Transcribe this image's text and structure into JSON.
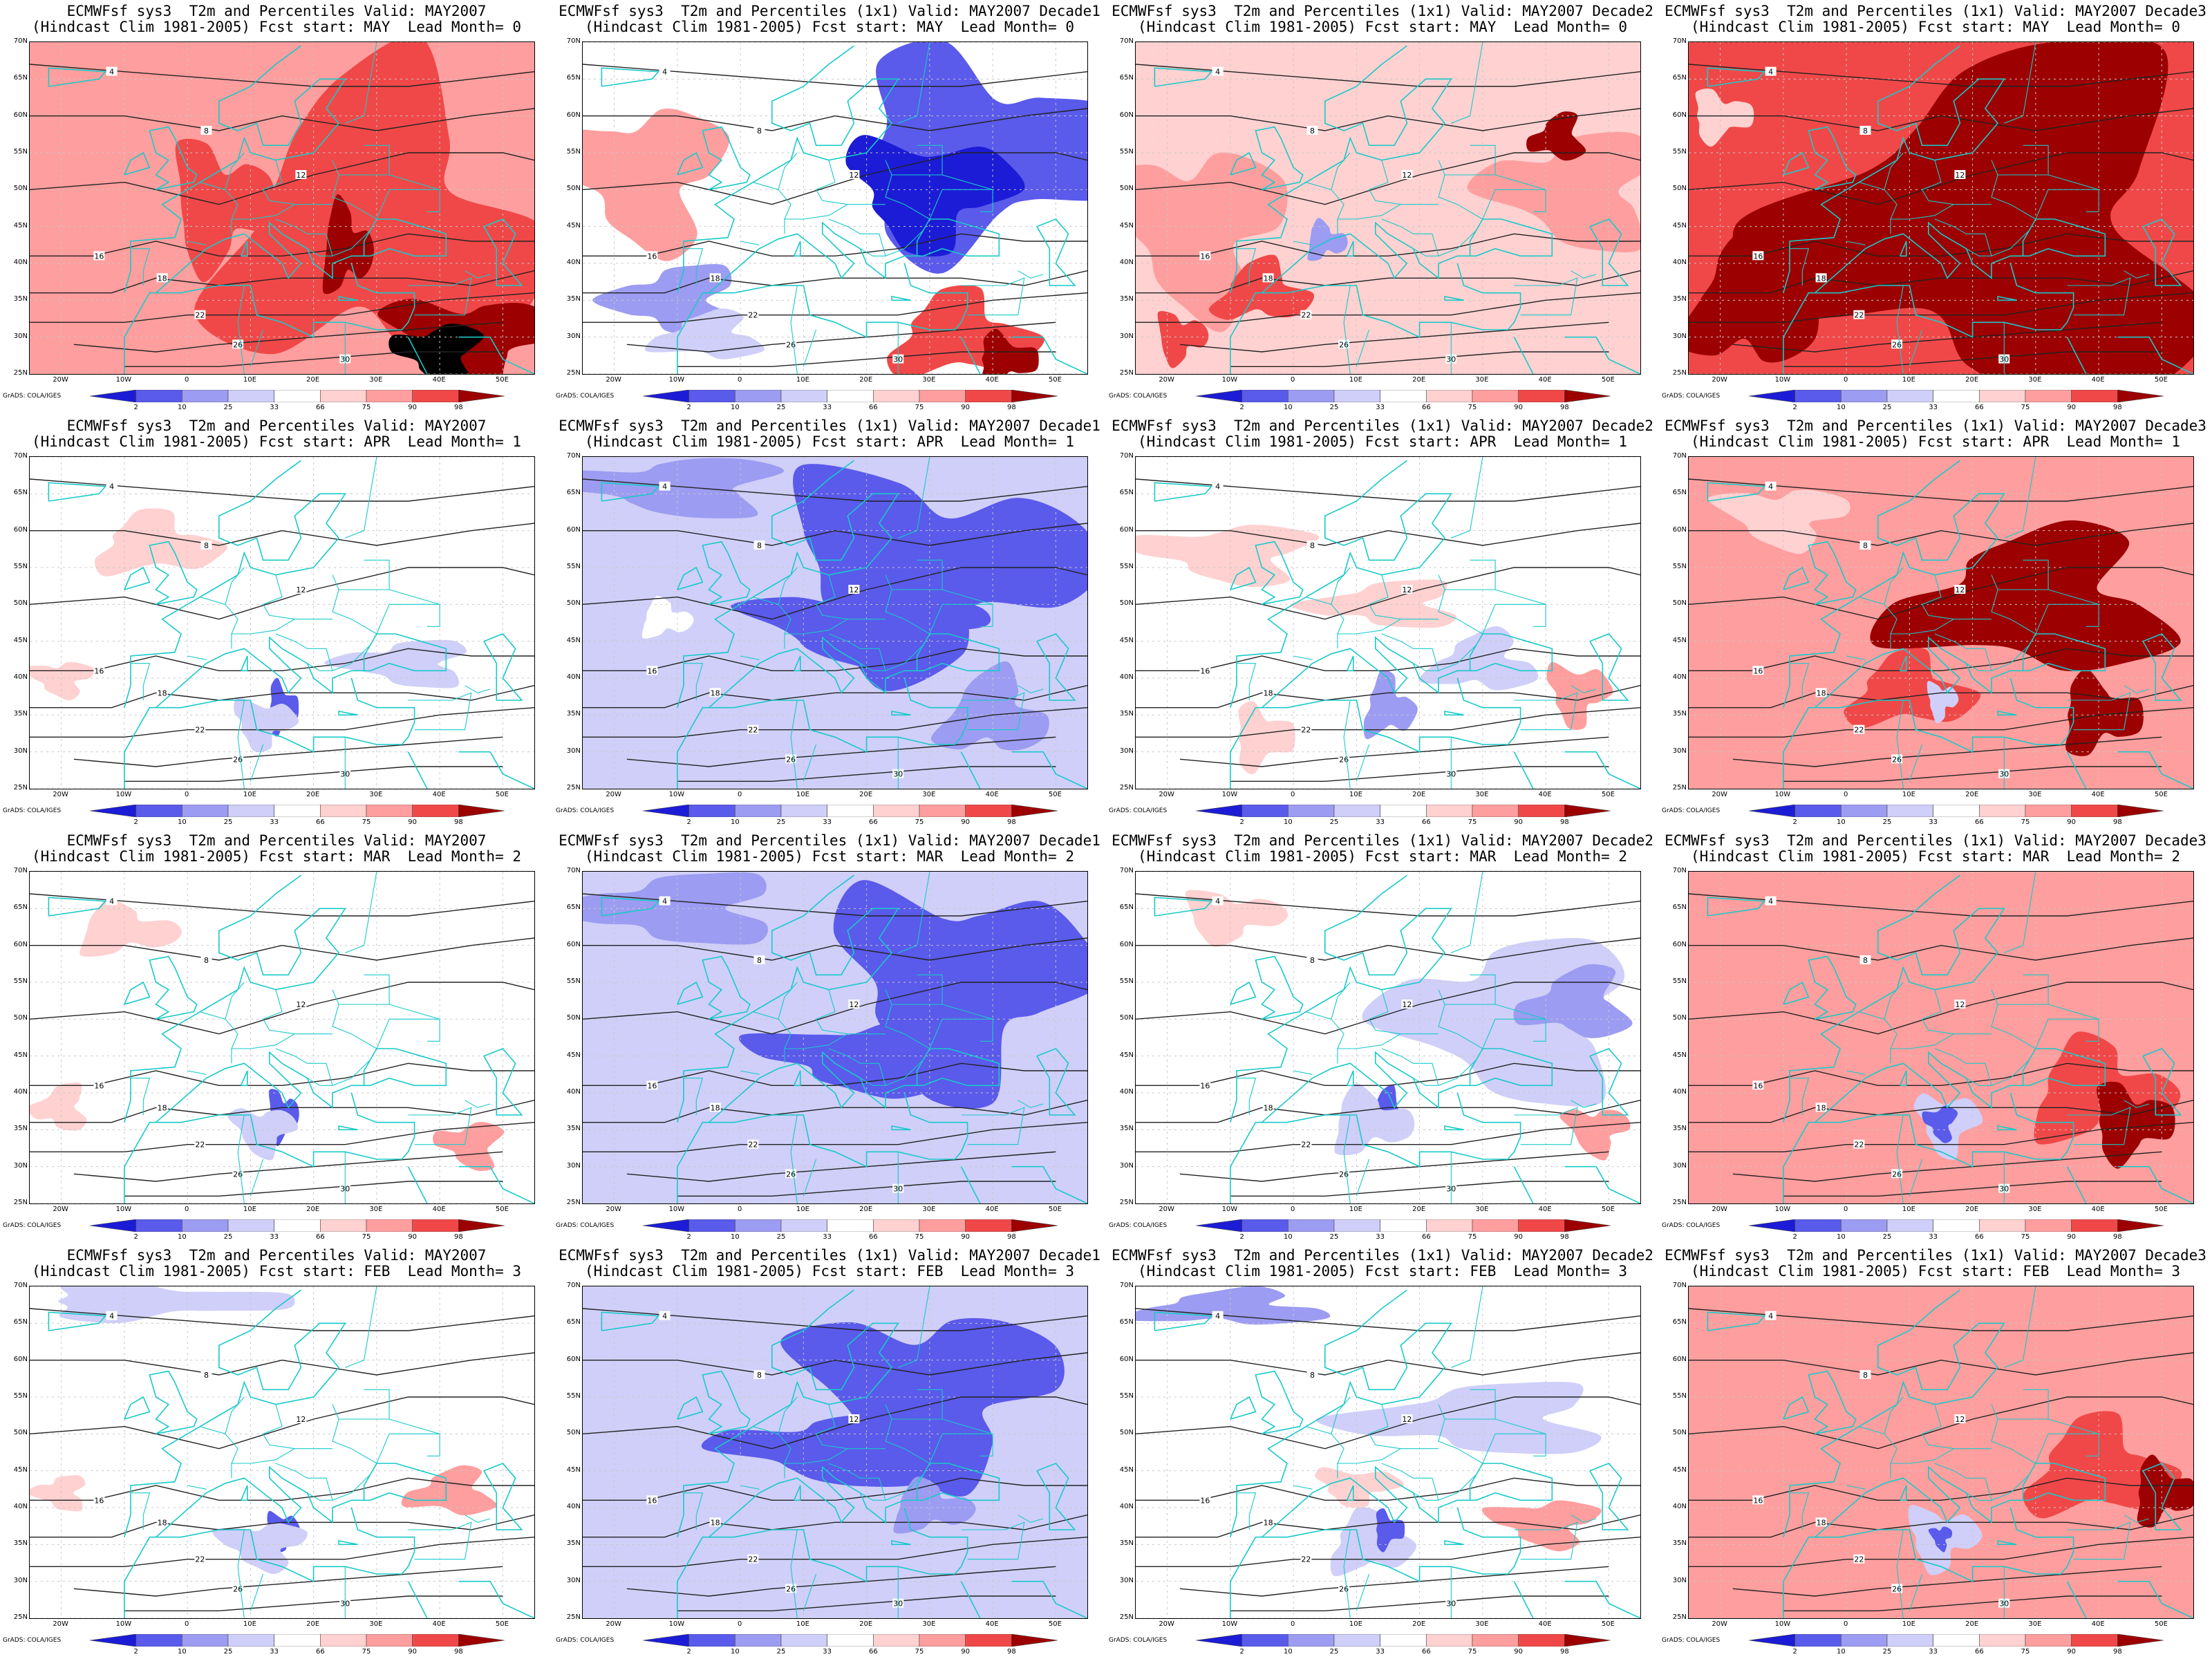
{
  "titles": [
    [
      "ECMWFsf sys3  T2m and Percentiles Valid: MAY2007",
      "(Hindcast Clim 1981-2005) Fcst start: MAY  Lead Month= 0"
    ],
    [
      "ECMWFsf sys3  T2m and Percentiles (1x1) Valid: MAY2007 Decade1",
      "(Hindcast Clim 1981-2005) Fcst start: MAY  Lead Month= 0"
    ],
    [
      "ECMWFsf sys3  T2m and Percentiles (1x1) Valid: MAY2007 Decade2",
      "(Hindcast Clim 1981-2005) Fcst start: MAY  Lead Month= 0"
    ],
    [
      "ECMWFsf sys3  T2m and Percentiles (1x1) Valid: MAY2007 Decade3",
      "(Hindcast Clim 1981-2005) Fcst start: MAY  Lead Month= 0"
    ],
    [
      "ECMWFsf sys3  T2m and Percentiles Valid: MAY2007",
      "(Hindcast Clim 1981-2005) Fcst start: APR  Lead Month= 1"
    ],
    [
      "ECMWFsf sys3  T2m and Percentiles (1x1) Valid: MAY2007 Decade1",
      "(Hindcast Clim 1981-2005) Fcst start: APR  Lead Month= 1"
    ],
    [
      "ECMWFsf sys3  T2m and Percentiles (1x1) Valid: MAY2007 Decade2",
      "(Hindcast Clim 1981-2005) Fcst start: APR  Lead Month= 1"
    ],
    [
      "ECMWFsf sys3  T2m and Percentiles (1x1) Valid: MAY2007 Decade3",
      "(Hindcast Clim 1981-2005) Fcst start: APR  Lead Month= 1"
    ],
    [
      "ECMWFsf sys3  T2m and Percentiles Valid: MAY2007",
      "(Hindcast Clim 1981-2005) Fcst start: MAR  Lead Month= 2"
    ],
    [
      "ECMWFsf sys3  T2m and Percentiles (1x1) Valid: MAY2007 Decade1",
      "(Hindcast Clim 1981-2005) Fcst start: MAR  Lead Month= 2"
    ],
    [
      "ECMWFsf sys3  T2m and Percentiles (1x1) Valid: MAY2007 Decade2",
      "(Hindcast Clim 1981-2005) Fcst start: MAR  Lead Month= 2"
    ],
    [
      "ECMWFsf sys3  T2m and Percentiles (1x1) Valid: MAY2007 Decade3",
      "(Hindcast Clim 1981-2005) Fcst start: MAR  Lead Month= 2"
    ],
    [
      "ECMWFsf sys3  T2m and Percentiles Valid: MAY2007",
      "(Hindcast Clim 1981-2005) Fcst start: FEB  Lead Month= 3"
    ],
    [
      "ECMWFsf sys3  T2m and Percentiles (1x1) Valid: MAY2007 Decade1",
      "(Hindcast Clim 1981-2005) Fcst start: FEB  Lead Month= 3"
    ],
    [
      "ECMWFsf sys3  T2m and Percentiles (1x1) Valid: MAY2007 Decade2",
      "(Hindcast Clim 1981-2005) Fcst start: FEB  Lead Month= 3"
    ],
    [
      "ECMWFsf sys3  T2m and Percentiles (1x1) Valid: MAY2007 Decade3",
      "(Hindcast Clim 1981-2005) Fcst start: FEB  Lead Month= 3"
    ]
  ],
  "map_extent": {
    "lon": [
      -25,
      55
    ],
    "lat": [
      25,
      70
    ]
  },
  "lat_labels": [
    "70N",
    "65N",
    "60N",
    "55N",
    "50N",
    "45N",
    "40N",
    "35N",
    "30N",
    "25N"
  ],
  "lon_labels": [
    "20W",
    "10W",
    "0",
    "10E",
    "20E",
    "30E",
    "40E",
    "50E"
  ],
  "contour_labels": [
    "4",
    "8",
    "12",
    "16",
    "18",
    "22",
    "26",
    "30"
  ],
  "colorbar_ticks": [
    "2",
    "10",
    "25",
    "33",
    "66",
    "75",
    "90",
    "98"
  ],
  "colorbar_colors": [
    "#1c1cd6",
    "#5a5aeb",
    "#9c9cf2",
    "#cfcff9",
    "#ffffff",
    "#ffd1d1",
    "#ff9e9e",
    "#f04848",
    "#9c0000"
  ],
  "credit": "GrADS: COLA/IGES",
  "panels": [
    {
      "base": 6,
      "blobs": [
        [
          30,
          45,
          30,
          25,
          7
        ],
        [
          25,
          42,
          5,
          7,
          8
        ],
        [
          5,
          48,
          10,
          10,
          7
        ],
        [
          45,
          30,
          16,
          7,
          8
        ],
        [
          40,
          28,
          8,
          5,
          9
        ],
        [
          -5,
          40,
          6,
          4,
          6
        ]
      ]
    },
    {
      "base": 4,
      "blobs": [
        [
          38,
          55,
          26,
          16,
          1
        ],
        [
          30,
          50,
          16,
          9,
          0
        ],
        [
          -15,
          52,
          15,
          12,
          6
        ],
        [
          -10,
          35,
          12,
          6,
          2
        ],
        [
          -5,
          30,
          10,
          4,
          3
        ],
        [
          35,
          30,
          14,
          7,
          7
        ],
        [
          42,
          27,
          6,
          4,
          8
        ]
      ]
    },
    {
      "base": 5,
      "blobs": [
        [
          -15,
          45,
          16,
          14,
          6
        ],
        [
          45,
          50,
          16,
          10,
          6
        ],
        [
          42,
          57,
          5,
          4,
          8
        ],
        [
          -5,
          36,
          9,
          5,
          7
        ],
        [
          5,
          43,
          4,
          3,
          2
        ],
        [
          -18,
          30,
          5,
          4,
          7
        ]
      ]
    },
    {
      "base": 7,
      "blobs": [
        [
          25,
          45,
          40,
          30,
          8
        ],
        [
          -15,
          35,
          12,
          12,
          8
        ],
        [
          40,
          38,
          12,
          8,
          8
        ],
        [
          -20,
          60,
          6,
          4,
          5
        ]
      ]
    },
    {
      "base": 4,
      "blobs": [
        [
          -5,
          58,
          12,
          5,
          5
        ],
        [
          15,
          36,
          3,
          4,
          1
        ],
        [
          12,
          34,
          6,
          4,
          3
        ],
        [
          -20,
          40,
          6,
          3,
          5
        ],
        [
          35,
          42,
          12,
          4,
          3
        ]
      ]
    },
    {
      "base": 3,
      "blobs": [
        [
          30,
          55,
          30,
          16,
          1
        ],
        [
          20,
          47,
          22,
          6,
          1
        ],
        [
          -10,
          66,
          20,
          5,
          2
        ],
        [
          -10,
          35,
          25,
          10,
          3
        ],
        [
          40,
          35,
          10,
          7,
          2
        ],
        [
          -12,
          48,
          5,
          3,
          4
        ]
      ]
    },
    {
      "base": 4,
      "blobs": [
        [
          -10,
          57,
          16,
          5,
          5
        ],
        [
          15,
          50,
          14,
          4,
          5
        ],
        [
          30,
          42,
          10,
          5,
          3
        ],
        [
          15,
          36,
          5,
          5,
          2
        ],
        [
          -5,
          32,
          6,
          5,
          5
        ],
        [
          45,
          38,
          6,
          5,
          6
        ]
      ]
    },
    {
      "base": 6,
      "blobs": [
        [
          30,
          50,
          26,
          12,
          8
        ],
        [
          10,
          38,
          12,
          6,
          7
        ],
        [
          40,
          35,
          8,
          6,
          8
        ],
        [
          15,
          37,
          3,
          3,
          3
        ],
        [
          -10,
          62,
          12,
          5,
          5
        ]
      ]
    },
    {
      "base": 4,
      "blobs": [
        [
          -10,
          62,
          10,
          4,
          5
        ],
        [
          15,
          37,
          3,
          4,
          1
        ],
        [
          12,
          35,
          6,
          4,
          3
        ],
        [
          45,
          33,
          6,
          4,
          6
        ],
        [
          -20,
          38,
          5,
          4,
          5
        ]
      ]
    },
    {
      "base": 3,
      "blobs": [
        [
          35,
          55,
          24,
          17,
          1
        ],
        [
          20,
          45,
          20,
          6,
          1
        ],
        [
          -10,
          65,
          20,
          6,
          2
        ],
        [
          -15,
          50,
          12,
          6,
          3
        ],
        [
          -5,
          30,
          25,
          6,
          3
        ]
      ]
    },
    {
      "base": 4,
      "blobs": [
        [
          35,
          50,
          22,
          14,
          3
        ],
        [
          45,
          52,
          10,
          6,
          2
        ],
        [
          15,
          37,
          4,
          4,
          1
        ],
        [
          12,
          36,
          8,
          5,
          3
        ],
        [
          -10,
          64,
          10,
          4,
          5
        ],
        [
          48,
          35,
          6,
          4,
          6
        ]
      ]
    },
    {
      "base": 6,
      "blobs": [
        [
          25,
          55,
          30,
          10,
          6
        ],
        [
          40,
          40,
          14,
          8,
          7
        ],
        [
          45,
          36,
          8,
          6,
          8
        ],
        [
          16,
          36,
          6,
          5,
          3
        ],
        [
          15,
          36,
          3,
          3,
          1
        ],
        [
          -15,
          45,
          10,
          18,
          6
        ]
      ]
    },
    {
      "base": 4,
      "blobs": [
        [
          -5,
          68,
          25,
          3,
          3
        ],
        [
          15,
          37,
          3,
          3,
          1
        ],
        [
          12,
          35,
          8,
          4,
          3
        ],
        [
          -20,
          42,
          5,
          3,
          5
        ],
        [
          42,
          42,
          8,
          4,
          6
        ]
      ]
    },
    {
      "base": 3,
      "blobs": [
        [
          30,
          56,
          24,
          14,
          1
        ],
        [
          15,
          48,
          20,
          6,
          1
        ],
        [
          -18,
          45,
          12,
          12,
          3
        ],
        [
          10,
          32,
          25,
          7,
          3
        ],
        [
          30,
          40,
          8,
          4,
          2
        ]
      ]
    },
    {
      "base": 4,
      "blobs": [
        [
          30,
          52,
          24,
          6,
          3
        ],
        [
          -10,
          67,
          18,
          3,
          2
        ],
        [
          12,
          35,
          8,
          5,
          3
        ],
        [
          15,
          37,
          3,
          3,
          1
        ],
        [
          10,
          43,
          8,
          3,
          5
        ],
        [
          40,
          38,
          10,
          4,
          6
        ]
      ]
    },
    {
      "base": 6,
      "blobs": [
        [
          40,
          45,
          14,
          8,
          7
        ],
        [
          50,
          42,
          6,
          5,
          8
        ],
        [
          15,
          36,
          7,
          5,
          3
        ],
        [
          15,
          36,
          2,
          2,
          1
        ],
        [
          -20,
          50,
          8,
          10,
          6
        ]
      ]
    }
  ]
}
